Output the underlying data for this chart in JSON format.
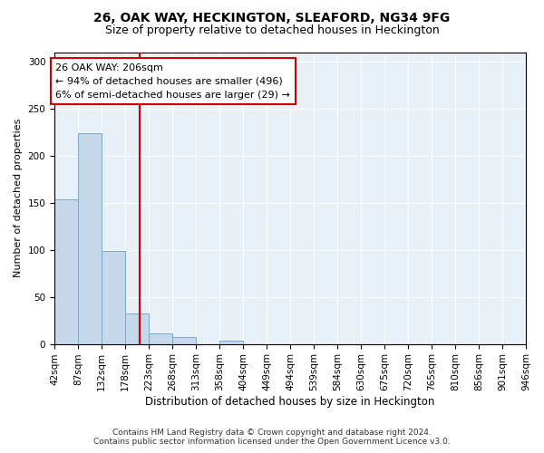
{
  "title": "26, OAK WAY, HECKINGTON, SLEAFORD, NG34 9FG",
  "subtitle": "Size of property relative to detached houses in Heckington",
  "xlabel": "Distribution of detached houses by size in Heckington",
  "ylabel": "Number of detached properties",
  "bin_edges": [
    42,
    87,
    132,
    178,
    223,
    268,
    313,
    358,
    404,
    449,
    494,
    539,
    584,
    630,
    675,
    720,
    765,
    810,
    856,
    901,
    946
  ],
  "bin_labels": [
    "42sqm",
    "87sqm",
    "132sqm",
    "178sqm",
    "223sqm",
    "268sqm",
    "313sqm",
    "358sqm",
    "404sqm",
    "449sqm",
    "494sqm",
    "539sqm",
    "584sqm",
    "630sqm",
    "675sqm",
    "720sqm",
    "765sqm",
    "810sqm",
    "856sqm",
    "901sqm",
    "946sqm"
  ],
  "counts": [
    154,
    224,
    99,
    32,
    11,
    7,
    0,
    3,
    0,
    0,
    0,
    0,
    0,
    0,
    0,
    0,
    0,
    0,
    0,
    0
  ],
  "bar_color": "#c8d8eb",
  "bar_edge_color": "#7aa8c8",
  "property_value": 206,
  "vline_color": "#cc0000",
  "annotation_line1": "26 OAK WAY: 206sqm",
  "annotation_line2": "← 94% of detached houses are smaller (496)",
  "annotation_line3": "6% of semi-detached houses are larger (29) →",
  "annotation_box_color": "white",
  "annotation_box_edge_color": "#cc0000",
  "ylim": [
    0,
    310
  ],
  "yticks": [
    0,
    50,
    100,
    150,
    200,
    250,
    300
  ],
  "footer_line1": "Contains HM Land Registry data © Crown copyright and database right 2024.",
  "footer_line2": "Contains public sector information licensed under the Open Government Licence v3.0.",
  "background_color": "#ffffff",
  "plot_background_color": "#e8f0f8",
  "grid_color": "#ffffff",
  "title_fontsize": 10,
  "subtitle_fontsize": 9,
  "ylabel_fontsize": 8,
  "xlabel_fontsize": 8.5,
  "tick_fontsize": 7.5,
  "annotation_fontsize": 8,
  "footer_fontsize": 6.5
}
